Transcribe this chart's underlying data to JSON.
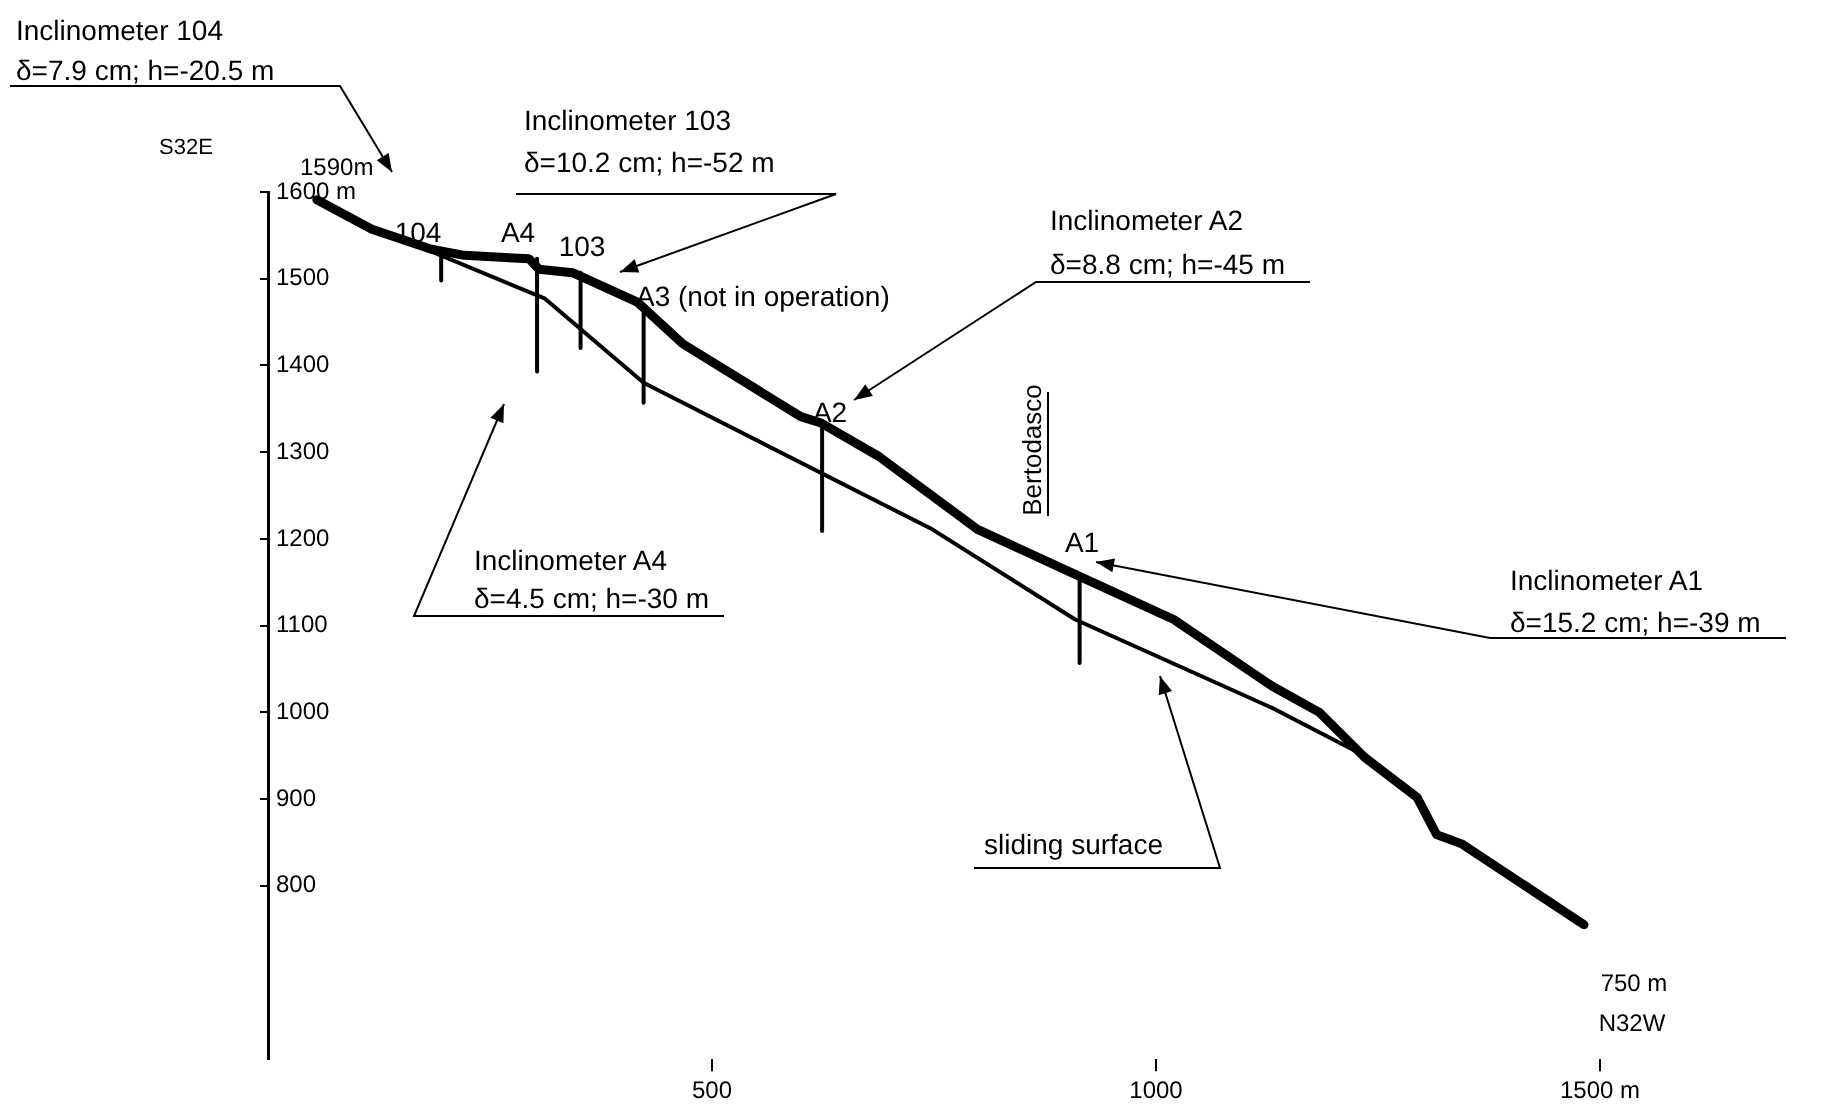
{
  "chart_data": {
    "type": "line",
    "series": [
      {
        "color": "#000000",
        "x": [
          55,
          117,
          184,
          221,
          294,
          305,
          343,
          416,
          467,
          600,
          622,
          688,
          799,
          909,
          1020,
          1131,
          1184,
          1235,
          1294,
          1316,
          1345,
          1482
        ],
        "values": [
          1591,
          1557,
          1534,
          1527,
          1523,
          1511,
          1507,
          1473,
          1425,
          1341,
          1334,
          1295,
          1211,
          1159,
          1107,
          1030,
          1000,
          948,
          902,
          859,
          848,
          755
        ]
      },
      {
        "color": "#000000",
        "x": [
          166,
          312,
          423,
          748,
          909,
          1131,
          1235
        ],
        "values": [
          1539,
          1477,
          1380,
          1211,
          1107,
          1005,
          950
        ]
      },
      {
        "color": "#000000",
        "x": [
          195,
          195
        ],
        "values": [
          1534,
          1498
        ]
      },
      {
        "color": "#000000",
        "x": [
          303,
          303
        ],
        "values": [
          1523,
          1393
        ]
      },
      {
        "color": "#000000",
        "x": [
          352,
          352
        ],
        "values": [
          1507,
          1420
        ]
      },
      {
        "color": "#000000",
        "x": [
          423,
          423
        ],
        "values": [
          1461,
          1357
        ]
      },
      {
        "color": "#000000",
        "x": [
          624,
          624
        ],
        "values": [
          1334,
          1209
        ]
      },
      {
        "color": "#000000",
        "x": [
          914,
          914
        ],
        "values": [
          1159,
          1057
        ]
      }
    ],
    "xlim": [
      0,
      1500
    ],
    "xticks": [
      500,
      1000,
      {
        "value": 1500,
        "label": "1500 m"
      }
    ],
    "ylim": [
      600,
      1600
    ],
    "yticks": [
      800,
      900,
      1000,
      1100,
      1200,
      1300,
      1400,
      1500,
      {
        "value": 1600,
        "label": "1600 m"
      }
    ],
    "grid": false,
    "legend": false,
    "marker": "none",
    "line_style": "solid",
    "annotations": [
      "S32E",
      "1590m",
      "104",
      "A4",
      "103",
      "A3 (not in operation)",
      "A2",
      "A1",
      "750 m",
      "N32W",
      "Bertodasco",
      "Inclinometer 104\nδ=7.9 cm; h=-20.5 m",
      "Inclinometer 103\nδ=10.2 cm; h=-52 m",
      "Inclinometer A2\nδ=8.8 cm; h=-45 m",
      "Inclinometer A4\nδ=4.5 cm; h=-30 m",
      "Inclinometer A1\nδ=15.2 cm; h=-39 m",
      "sliding surface"
    ]
  }
}
